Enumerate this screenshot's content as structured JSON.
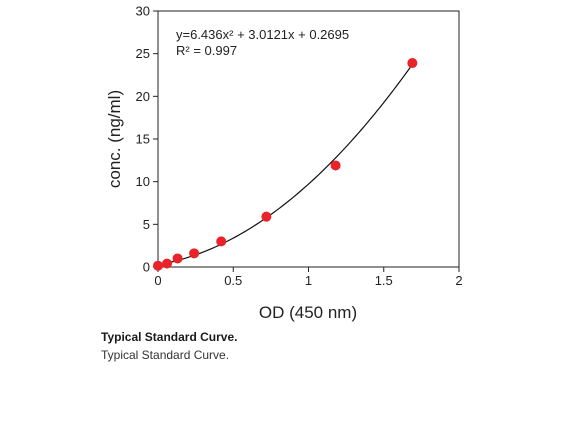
{
  "chart_data": {
    "type": "scatter",
    "xlabel": "OD (450 nm)",
    "ylabel": "conc. (ng/ml)",
    "xlim": [
      0,
      2
    ],
    "ylim": [
      0,
      30
    ],
    "xticks": [
      0,
      0.5,
      1,
      1.5,
      2
    ],
    "xtick_labels": [
      "0",
      "0.5",
      "1",
      "1.5",
      "2"
    ],
    "yticks": [
      0,
      5,
      10,
      15,
      20,
      25,
      30
    ],
    "ytick_labels": [
      "0",
      "5",
      "10",
      "15",
      "20",
      "25",
      "30"
    ],
    "grid": false,
    "point_color": "#e8232a",
    "x": [
      0.0,
      0.06,
      0.13,
      0.24,
      0.42,
      0.72,
      1.18,
      1.69
    ],
    "y": [
      0.15,
      0.4,
      1.0,
      1.6,
      3.0,
      5.9,
      11.9,
      23.9
    ],
    "fit": {
      "a": 6.436,
      "b": 3.0121,
      "c": 0.2695,
      "x_range": [
        0,
        1.69
      ],
      "equation_text": "y=6.436x² + 3.0121x + 0.2695",
      "r2_text": "R² = 0.997"
    }
  },
  "caption": {
    "title": "Typical Standard Curve.",
    "text": "Typical Standard Curve."
  }
}
